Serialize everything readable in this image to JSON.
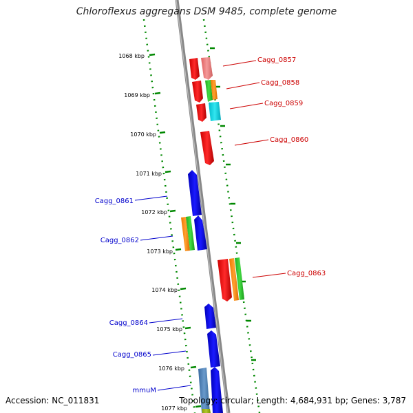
{
  "title": "Chloroflexus aggregans DSM 9485, complete genome",
  "footer": {
    "accession": "Accession: NC_011831",
    "stats": "Topology: circular; Length: 4,684,931 bp; Genes: 3,787"
  },
  "kbp_labels": [
    "1068 kbp",
    "1069 kbp",
    "1070 kbp",
    "1071 kbp",
    "1072 kbp",
    "1073 kbp",
    "1074 kbp",
    "1075 kbp",
    "1076 kbp",
    "1077 kbp"
  ],
  "gene_labels_forward": [
    "Cagg_0857",
    "Cagg_0858",
    "Cagg_0859",
    "Cagg_0860",
    "Cagg_0863"
  ],
  "gene_labels_reverse": [
    "Cagg_0861",
    "Cagg_0862",
    "Cagg_0864",
    "Cagg_0865",
    "mmuM"
  ],
  "colors": {
    "forward_label": "#cc0000",
    "reverse_label": "#0000cc",
    "forward_gene": "#ff0000",
    "reverse_gene": "#0000ee",
    "backbone": "#888888",
    "ruler": "#008800"
  }
}
